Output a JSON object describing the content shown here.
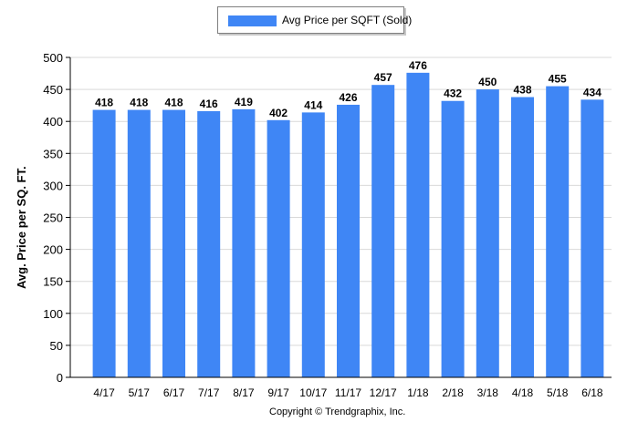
{
  "legend": {
    "label": "Avg Price per SQFT (Sold)",
    "color": "#3f86f5"
  },
  "footer": {
    "copyright": "Copyright © Trendgraphix, Inc."
  },
  "chart_data": {
    "type": "bar",
    "title": "",
    "xlabel": "",
    "ylabel": "Avg. Price per SQ. FT.",
    "categories": [
      "4/17",
      "5/17",
      "6/17",
      "7/17",
      "8/17",
      "9/17",
      "10/17",
      "11/17",
      "12/17",
      "1/18",
      "2/18",
      "3/18",
      "4/18",
      "5/18",
      "6/18"
    ],
    "series": [
      {
        "name": "Avg Price per SQFT (Sold)",
        "values": [
          418,
          418,
          418,
          416,
          419,
          402,
          414,
          426,
          457,
          476,
          432,
          450,
          438,
          455,
          434
        ],
        "color": "#3f86f5"
      }
    ],
    "ylim": [
      0,
      500
    ],
    "yticks": [
      0,
      50,
      100,
      150,
      200,
      250,
      300,
      350,
      400,
      450,
      500
    ],
    "grid": true,
    "data_labels": true,
    "legend_position": "top-center"
  }
}
